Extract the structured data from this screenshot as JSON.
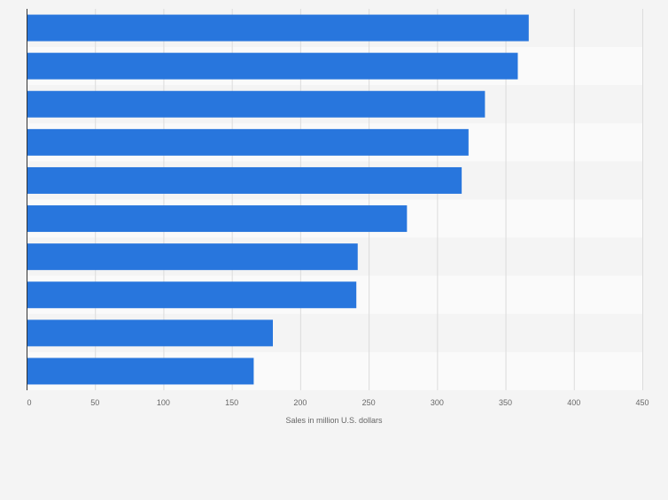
{
  "chart_data": {
    "type": "bar",
    "orientation": "horizontal",
    "categories": [
      "",
      "",
      "",
      "",
      "",
      "",
      "",
      "",
      "",
      ""
    ],
    "values": [
      367,
      359,
      335,
      323,
      318,
      278,
      242,
      241,
      180,
      166
    ],
    "title": "",
    "xlabel": "Sales in million U.S. dollars",
    "ylabel": "",
    "xlim": [
      0,
      450
    ],
    "xticks": [
      0,
      50,
      100,
      150,
      200,
      250,
      300,
      350,
      400,
      450
    ],
    "grid": true,
    "legend": "none",
    "colors": {
      "bar": "#2876dd",
      "background": "#f4f4f4",
      "band_light": "#fafafa",
      "band_dark": "#f4f4f4",
      "grid": "#dcdcdc",
      "axis": "#333333",
      "tick_text": "#666666"
    }
  }
}
